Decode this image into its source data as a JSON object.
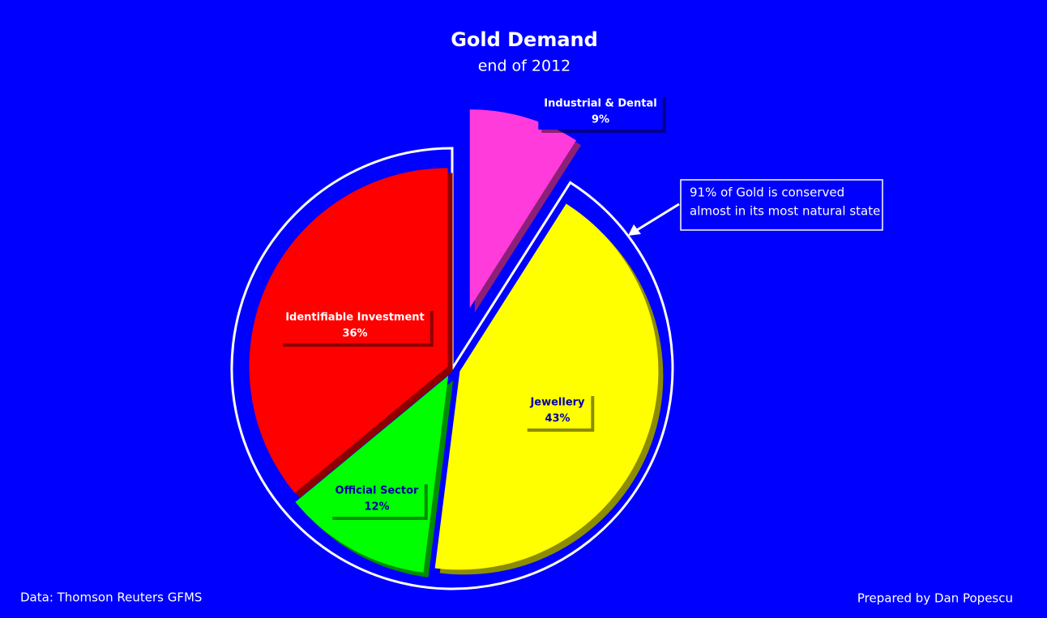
{
  "chart_data": {
    "type": "pie",
    "title": "Gold Demand",
    "subtitle": "end of 2012",
    "categories": [
      "Industrial & Dental",
      "Jewellery",
      "Official Sector",
      "Identifiable Investment"
    ],
    "values": [
      9,
      43,
      12,
      36
    ],
    "value_labels": [
      "9%",
      "43%",
      "12%",
      "36%"
    ],
    "colors": [
      "#ff3bdb",
      "#ffff00",
      "#00ff00",
      "#ff0000"
    ],
    "annotation": [
      "91% of Gold is conserved",
      "almost in its most natural state"
    ],
    "source": "Data: Thomson Reuters GFMS",
    "credit": "Prepared by Dan Popescu"
  }
}
